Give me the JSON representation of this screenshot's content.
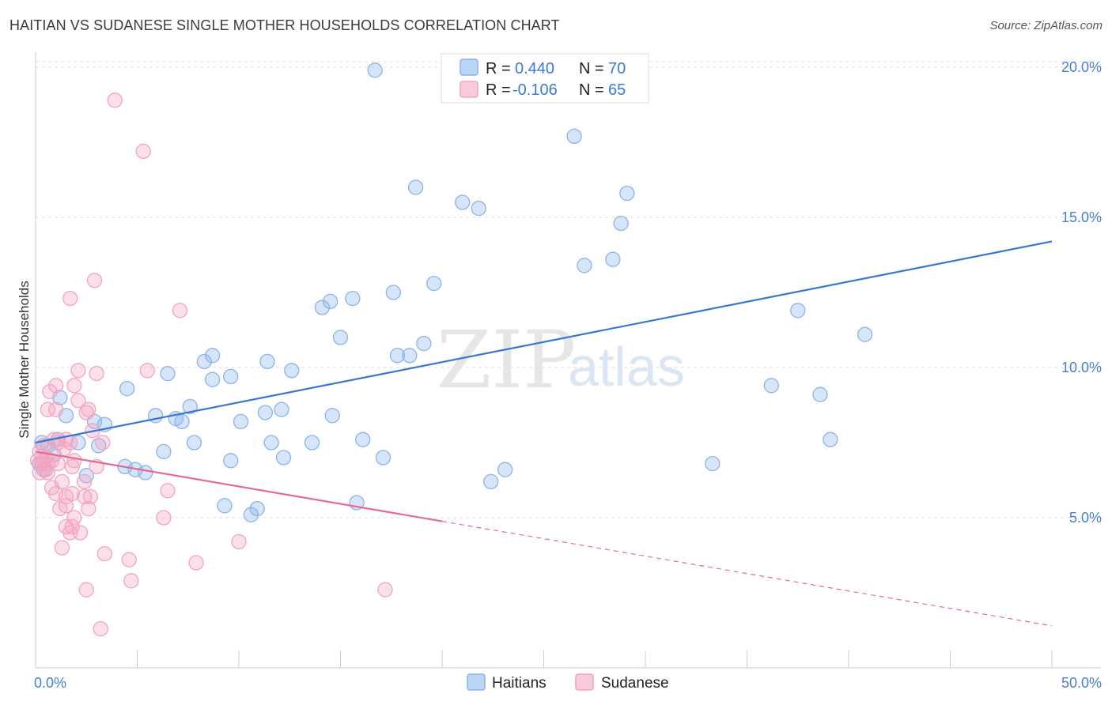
{
  "title": "HAITIAN VS SUDANESE SINGLE MOTHER HOUSEHOLDS CORRELATION CHART",
  "source": "Source: ZipAtlas.com",
  "watermark": {
    "zip": "ZIP",
    "atlas": "atlas"
  },
  "chart_data": {
    "type": "scatter",
    "ylabel": "Single Mother Households",
    "xlim": [
      0,
      50
    ],
    "ylim": [
      0,
      20.5
    ],
    "x_ticks": [
      {
        "value": 0,
        "label": "0.0%"
      },
      {
        "value": 50,
        "label": "50.0%"
      }
    ],
    "y_ticks": [
      {
        "value": 5,
        "label": "5.0%"
      },
      {
        "value": 10,
        "label": "10.0%"
      },
      {
        "value": 15,
        "label": "15.0%"
      },
      {
        "value": 20,
        "label": "20.0%"
      }
    ],
    "grid": "horizontal-dashed",
    "legend_top": [
      {
        "r_label": "R =",
        "r_value": "0.440",
        "n_label": "N =",
        "n_value": "70",
        "color": "#8ab4ea"
      },
      {
        "r_label": "R =",
        "r_value": "-0.106",
        "n_label": "N =",
        "n_value": "65",
        "color": "#f4a3bf"
      }
    ],
    "series": [
      {
        "name": "Haitians",
        "color": "#8ab4ea",
        "line_color": "#3a76d0",
        "trend": {
          "x": [
            0,
            50
          ],
          "y": [
            7.5,
            14.2
          ]
        },
        "points": [
          [
            16.7,
            19.9
          ],
          [
            26.5,
            17.7
          ],
          [
            18.7,
            16.0
          ],
          [
            21.0,
            15.5
          ],
          [
            21.8,
            15.3
          ],
          [
            29.1,
            15.8
          ],
          [
            28.8,
            14.8
          ],
          [
            27.0,
            13.4
          ],
          [
            28.4,
            13.6
          ],
          [
            19.6,
            12.8
          ],
          [
            17.6,
            12.5
          ],
          [
            15.6,
            12.3
          ],
          [
            14.5,
            12.2
          ],
          [
            14.1,
            12.0
          ],
          [
            37.5,
            11.9
          ],
          [
            40.8,
            11.1
          ],
          [
            15.0,
            11.0
          ],
          [
            19.1,
            10.8
          ],
          [
            17.8,
            10.4
          ],
          [
            18.4,
            10.4
          ],
          [
            8.7,
            10.4
          ],
          [
            8.3,
            10.2
          ],
          [
            11.4,
            10.2
          ],
          [
            12.6,
            9.9
          ],
          [
            6.5,
            9.8
          ],
          [
            9.6,
            9.7
          ],
          [
            8.7,
            9.6
          ],
          [
            36.2,
            9.4
          ],
          [
            4.5,
            9.3
          ],
          [
            38.6,
            9.1
          ],
          [
            1.2,
            9.0
          ],
          [
            7.6,
            8.7
          ],
          [
            12.1,
            8.6
          ],
          [
            11.3,
            8.5
          ],
          [
            5.9,
            8.4
          ],
          [
            14.6,
            8.4
          ],
          [
            1.5,
            8.4
          ],
          [
            2.9,
            8.2
          ],
          [
            7.2,
            8.2
          ],
          [
            3.4,
            8.1
          ],
          [
            6.9,
            8.3
          ],
          [
            10.1,
            8.2
          ],
          [
            1.1,
            7.6
          ],
          [
            2.1,
            7.5
          ],
          [
            0.6,
            7.4
          ],
          [
            7.8,
            7.5
          ],
          [
            11.6,
            7.5
          ],
          [
            13.6,
            7.5
          ],
          [
            16.1,
            7.6
          ],
          [
            39.1,
            7.6
          ],
          [
            3.1,
            7.4
          ],
          [
            0.3,
            7.5
          ],
          [
            0.9,
            7.1
          ],
          [
            6.3,
            7.2
          ],
          [
            9.6,
            6.9
          ],
          [
            12.2,
            7.0
          ],
          [
            17.1,
            7.0
          ],
          [
            33.3,
            6.8
          ],
          [
            4.4,
            6.7
          ],
          [
            4.9,
            6.6
          ],
          [
            23.1,
            6.6
          ],
          [
            2.5,
            6.4
          ],
          [
            5.4,
            6.5
          ],
          [
            0.2,
            6.8
          ],
          [
            0.4,
            6.6
          ],
          [
            22.4,
            6.2
          ],
          [
            15.8,
            5.5
          ],
          [
            9.3,
            5.4
          ],
          [
            10.9,
            5.3
          ],
          [
            10.6,
            5.1
          ]
        ]
      },
      {
        "name": "Sudanese",
        "color": "#f4a3bf",
        "line_color": "#e46a95",
        "trend": {
          "x": [
            0,
            50
          ],
          "y": [
            7.2,
            1.4
          ]
        },
        "trend_solid_until_x": 20,
        "points": [
          [
            3.9,
            18.9
          ],
          [
            5.3,
            17.2
          ],
          [
            2.9,
            12.9
          ],
          [
            1.7,
            12.3
          ],
          [
            7.1,
            11.9
          ],
          [
            5.5,
            9.9
          ],
          [
            2.1,
            9.9
          ],
          [
            3.0,
            9.8
          ],
          [
            1.0,
            9.4
          ],
          [
            1.9,
            9.4
          ],
          [
            0.7,
            9.2
          ],
          [
            2.1,
            8.9
          ],
          [
            0.6,
            8.6
          ],
          [
            1.0,
            8.6
          ],
          [
            2.5,
            8.5
          ],
          [
            2.6,
            8.6
          ],
          [
            2.8,
            7.9
          ],
          [
            1.5,
            7.6
          ],
          [
            0.9,
            7.6
          ],
          [
            1.1,
            7.5
          ],
          [
            1.7,
            7.5
          ],
          [
            3.3,
            7.5
          ],
          [
            0.4,
            7.4
          ],
          [
            1.4,
            7.3
          ],
          [
            0.2,
            7.2
          ],
          [
            0.5,
            7.0
          ],
          [
            0.1,
            6.9
          ],
          [
            0.4,
            6.9
          ],
          [
            0.8,
            6.9
          ],
          [
            1.9,
            6.9
          ],
          [
            0.3,
            6.8
          ],
          [
            0.6,
            6.8
          ],
          [
            1.1,
            6.8
          ],
          [
            1.8,
            6.7
          ],
          [
            3.0,
            6.7
          ],
          [
            0.5,
            6.6
          ],
          [
            0.2,
            6.5
          ],
          [
            0.6,
            6.5
          ],
          [
            1.3,
            6.2
          ],
          [
            0.8,
            6.0
          ],
          [
            2.4,
            6.2
          ],
          [
            1.8,
            5.8
          ],
          [
            2.4,
            5.7
          ],
          [
            1.0,
            5.8
          ],
          [
            1.5,
            5.7
          ],
          [
            2.7,
            5.7
          ],
          [
            6.5,
            5.9
          ],
          [
            1.5,
            5.4
          ],
          [
            1.2,
            5.3
          ],
          [
            2.6,
            5.3
          ],
          [
            1.9,
            5.0
          ],
          [
            6.3,
            5.0
          ],
          [
            1.5,
            4.7
          ],
          [
            1.8,
            4.7
          ],
          [
            1.7,
            4.5
          ],
          [
            2.2,
            4.5
          ],
          [
            1.3,
            4.0
          ],
          [
            10.0,
            4.2
          ],
          [
            3.4,
            3.8
          ],
          [
            4.6,
            3.6
          ],
          [
            7.9,
            3.5
          ],
          [
            4.7,
            2.9
          ],
          [
            17.2,
            2.6
          ],
          [
            2.5,
            2.6
          ],
          [
            3.2,
            1.3
          ]
        ]
      }
    ]
  }
}
